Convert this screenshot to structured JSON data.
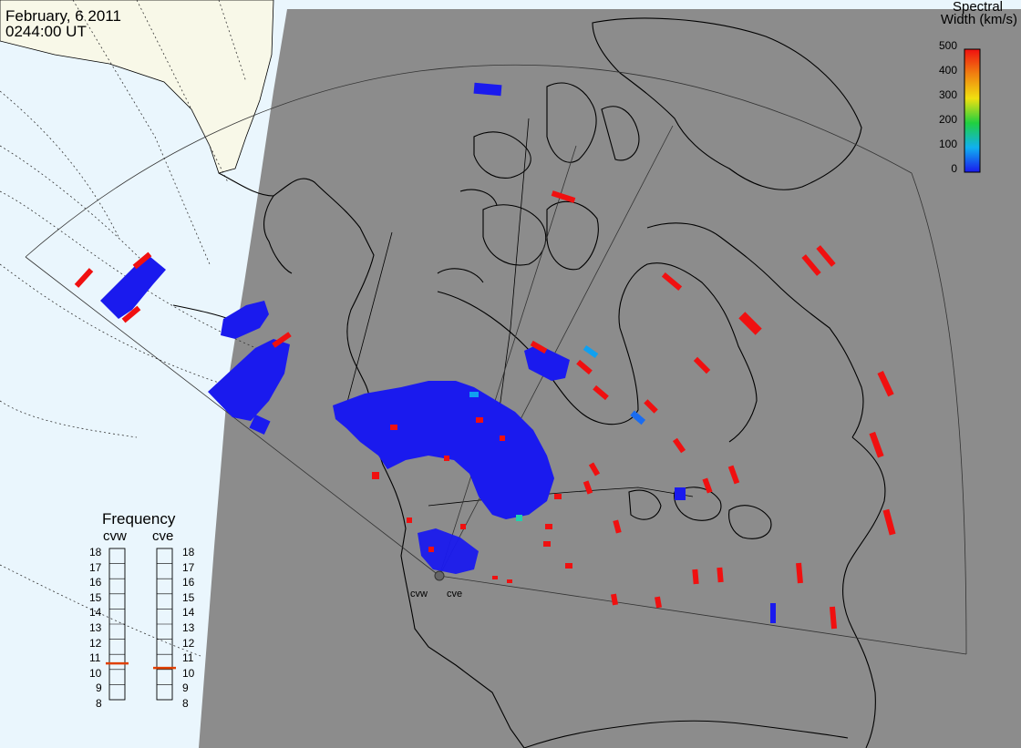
{
  "header": {
    "date": "February, 6 2011",
    "time": "0244:00 UT"
  },
  "colorbar": {
    "title_line1": "Spectral",
    "title_line2": "Width (km/s)",
    "ticks": [
      "500",
      "400",
      "300",
      "200",
      "100",
      "0"
    ]
  },
  "frequency": {
    "title": "Frequency",
    "radars": [
      "cvw",
      "cve"
    ],
    "ticks": [
      "18",
      "17",
      "16",
      "15",
      "14",
      "13",
      "12",
      "11",
      "10",
      "9",
      "8"
    ],
    "cvw_value": 10.9,
    "cve_value": 10.6
  },
  "sites": [
    "cvw",
    "cve"
  ],
  "colors": {
    "night": "#8c8c8c",
    "ocean": "#eaf6fd",
    "land": "#f8f8e8",
    "low": "#1a1aee",
    "high": "#f01010",
    "cyan": "#10a0f0",
    "indicator": "#e04000"
  }
}
